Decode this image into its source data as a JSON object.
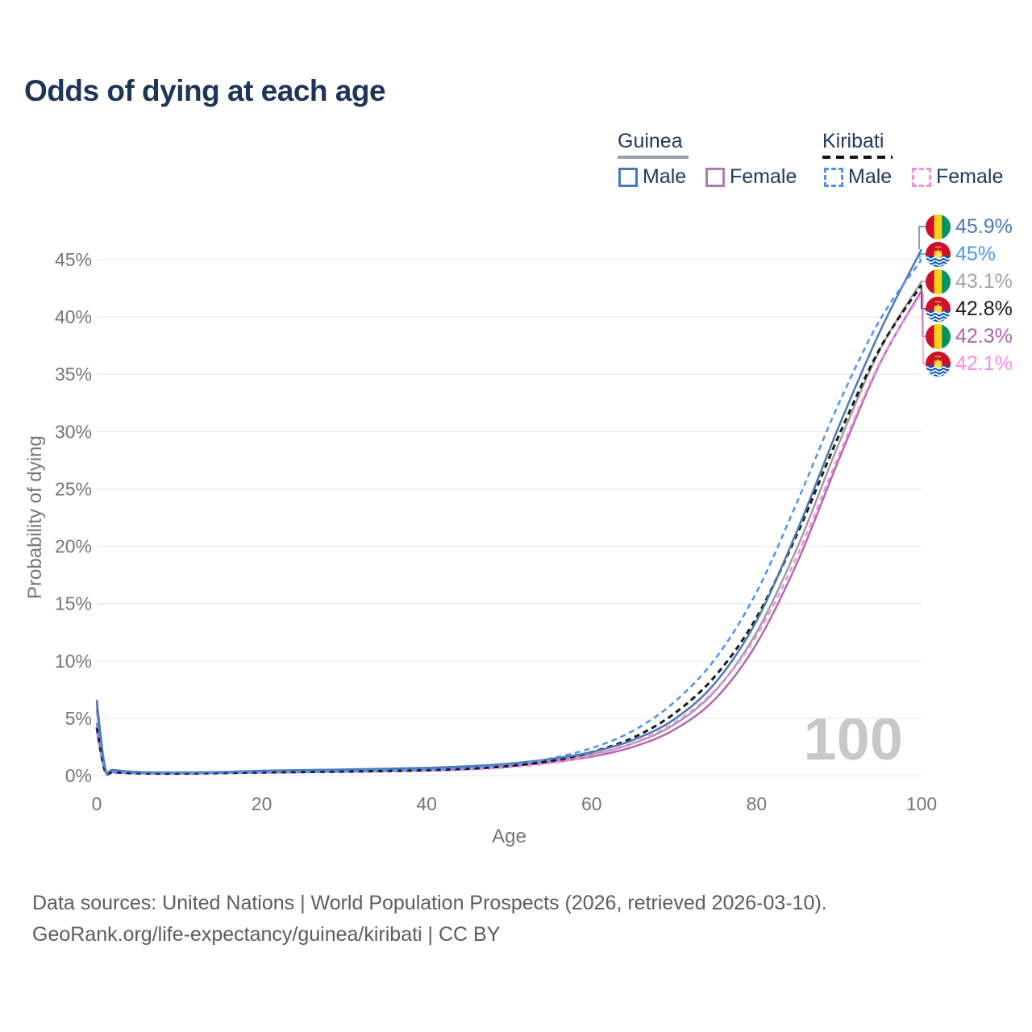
{
  "title": "Odds of dying at each age",
  "legend": {
    "groups": [
      {
        "title": "Guinea",
        "line_style": "solid",
        "underline_color": "#9aa0a6",
        "items": [
          {
            "label": "Male",
            "color": "#4a7ab5"
          },
          {
            "label": "Female",
            "color": "#b279ae"
          }
        ]
      },
      {
        "title": "Kiribati",
        "line_style": "dashed",
        "underline_color": "#111111",
        "items": [
          {
            "label": "Male",
            "color": "#4d94f5"
          },
          {
            "label": "Female",
            "color": "#fd8ae5"
          }
        ]
      }
    ]
  },
  "chart_data": {
    "type": "line",
    "title": "Odds of dying at each age",
    "xlabel": "Age",
    "ylabel": "Probability of dying",
    "xlim": [
      0,
      100
    ],
    "ylim": [
      0,
      47
    ],
    "x_ticks": [
      0,
      20,
      40,
      60,
      80,
      100
    ],
    "y_ticks": [
      0,
      5,
      10,
      15,
      20,
      25,
      30,
      35,
      40,
      45
    ],
    "y_tick_suffix": "%",
    "grid": "horizontal",
    "legend_position": "top-right",
    "age_counter": "100",
    "x": [
      0,
      1,
      2,
      5,
      10,
      15,
      20,
      25,
      30,
      35,
      40,
      45,
      50,
      55,
      60,
      65,
      70,
      75,
      80,
      85,
      90,
      95,
      100
    ],
    "series": [
      {
        "name": "Guinea Male",
        "country": "Guinea",
        "sex": "Male",
        "flag": "guinea",
        "dash": false,
        "color": "#4a7ab5",
        "label_color": "#4a7ab5",
        "end_label": "45.9%",
        "values": [
          6.6,
          0.75,
          0.5,
          0.32,
          0.28,
          0.32,
          0.42,
          0.48,
          0.54,
          0.6,
          0.68,
          0.82,
          1.05,
          1.45,
          2.05,
          3.1,
          4.9,
          8.1,
          13.5,
          21.5,
          30.5,
          38.8,
          45.9
        ]
      },
      {
        "name": "Kiribati Male",
        "country": "Kiribati",
        "sex": "Male",
        "flag": "kiribati",
        "dash": true,
        "color": "#4d94f5",
        "label_color": "#4d94f5",
        "end_label": "45%",
        "values": [
          4.6,
          0.45,
          0.32,
          0.22,
          0.2,
          0.24,
          0.3,
          0.34,
          0.38,
          0.44,
          0.52,
          0.66,
          0.95,
          1.5,
          2.4,
          3.9,
          6.4,
          10.2,
          16.0,
          24.0,
          32.5,
          39.8,
          45.0
        ]
      },
      {
        "name": "Guinea Both sexes",
        "country": "Guinea",
        "sex": "Both",
        "flag": "guinea",
        "dash": false,
        "color": "#9e9e9e",
        "label_color": "#a3a3a3",
        "end_label": "43.1%",
        "values": [
          6.2,
          0.7,
          0.48,
          0.3,
          0.26,
          0.3,
          0.38,
          0.44,
          0.5,
          0.55,
          0.61,
          0.73,
          0.95,
          1.3,
          1.85,
          2.8,
          4.45,
          7.4,
          12.5,
          20.0,
          29.0,
          37.2,
          43.1
        ]
      },
      {
        "name": "Kiribati Both sexes",
        "country": "Kiribati",
        "sex": "Both",
        "flag": "kiribati",
        "dash": true,
        "color": "#1a1a1a",
        "label_color": "#1a1a1a",
        "end_label": "42.8%",
        "values": [
          4.2,
          0.4,
          0.29,
          0.2,
          0.18,
          0.22,
          0.27,
          0.31,
          0.35,
          0.4,
          0.47,
          0.59,
          0.83,
          1.28,
          2.05,
          3.3,
          5.4,
          8.7,
          13.8,
          21.2,
          29.7,
          37.3,
          42.8
        ]
      },
      {
        "name": "Guinea Female",
        "country": "Guinea",
        "sex": "Female",
        "flag": "guinea",
        "dash": false,
        "color": "#b06ab0",
        "label_color": "#ad63ab",
        "end_label": "42.3%",
        "values": [
          5.8,
          0.65,
          0.45,
          0.28,
          0.24,
          0.28,
          0.35,
          0.4,
          0.45,
          0.5,
          0.55,
          0.65,
          0.85,
          1.15,
          1.65,
          2.5,
          4.0,
          6.7,
          11.5,
          18.7,
          27.6,
          36.0,
          42.3
        ]
      },
      {
        "name": "Kiribati Female",
        "country": "Kiribati",
        "sex": "Female",
        "flag": "kiribati",
        "dash": true,
        "color": "#fd8ae5",
        "label_color": "#fd8ae5",
        "end_label": "42.1%",
        "values": [
          3.8,
          0.36,
          0.26,
          0.18,
          0.17,
          0.2,
          0.24,
          0.28,
          0.32,
          0.36,
          0.42,
          0.53,
          0.72,
          1.08,
          1.75,
          2.85,
          4.6,
          7.5,
          12.2,
          19.3,
          28.0,
          36.1,
          42.1
        ]
      }
    ]
  },
  "footer": {
    "line1": "Data sources: United Nations | World Population Prospects (2026, retrieved 2026-03-10).",
    "line2": "GeoRank.org/life-expectancy/guinea/kiribati | CC BY"
  },
  "colors": {
    "title": "#1d3557",
    "axis_text": "#767676",
    "gridline": "#e9e9e9",
    "watermark": "#c8c8c8",
    "footer_text": "#5c5c5c"
  }
}
